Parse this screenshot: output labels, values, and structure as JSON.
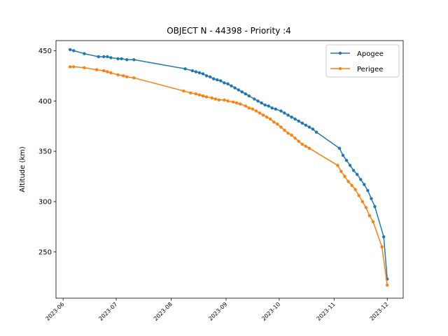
{
  "chart_data": {
    "type": "line",
    "title": "OBJECT N - 44398 - Priority :4",
    "xlabel": "",
    "ylabel": "Altitude (km)",
    "x_ticks": [
      "2023-06",
      "2023-07",
      "2023-08",
      "2023-09",
      "2023-10",
      "2023-11",
      "2023-12"
    ],
    "x_tick_dates": [
      "2023-06-01",
      "2023-07-01",
      "2023-08-01",
      "2023-09-01",
      "2023-10-01",
      "2023-11-01",
      "2023-12-01"
    ],
    "y_ticks": [
      250,
      300,
      350,
      400,
      450
    ],
    "xlim": [
      "2023-05-28",
      "2023-12-10"
    ],
    "ylim": [
      204,
      460
    ],
    "grid": false,
    "legend_position": "upper right",
    "series": [
      {
        "name": "Apogee",
        "color": "#1f77b4",
        "points": [
          [
            "2023-06-05",
            451
          ],
          [
            "2023-06-07",
            450
          ],
          [
            "2023-06-13",
            447
          ],
          [
            "2023-06-21",
            444
          ],
          [
            "2023-06-24",
            444
          ],
          [
            "2023-06-26",
            444
          ],
          [
            "2023-06-28",
            443
          ],
          [
            "2023-07-02",
            442
          ],
          [
            "2023-07-04",
            442
          ],
          [
            "2023-07-07",
            441
          ],
          [
            "2023-07-11",
            441
          ],
          [
            "2023-08-09",
            432
          ],
          [
            "2023-08-13",
            430
          ],
          [
            "2023-08-15",
            429
          ],
          [
            "2023-08-17",
            428
          ],
          [
            "2023-08-19",
            427
          ],
          [
            "2023-08-21",
            425
          ],
          [
            "2023-08-23",
            424
          ],
          [
            "2023-08-25",
            422
          ],
          [
            "2023-08-27",
            421
          ],
          [
            "2023-08-29",
            420
          ],
          [
            "2023-08-31",
            418
          ],
          [
            "2023-09-02",
            417
          ],
          [
            "2023-09-04",
            415
          ],
          [
            "2023-09-06",
            413
          ],
          [
            "2023-09-08",
            411
          ],
          [
            "2023-09-10",
            409
          ],
          [
            "2023-09-12",
            407
          ],
          [
            "2023-09-14",
            405
          ],
          [
            "2023-09-17",
            402
          ],
          [
            "2023-09-19",
            400
          ],
          [
            "2023-09-21",
            398
          ],
          [
            "2023-09-23",
            396
          ],
          [
            "2023-09-25",
            395
          ],
          [
            "2023-09-27",
            393
          ],
          [
            "2023-09-29",
            392
          ],
          [
            "2023-10-02",
            390
          ],
          [
            "2023-10-04",
            388
          ],
          [
            "2023-10-06",
            386
          ],
          [
            "2023-10-08",
            384
          ],
          [
            "2023-10-10",
            382
          ],
          [
            "2023-10-12",
            380
          ],
          [
            "2023-10-14",
            378
          ],
          [
            "2023-10-16",
            376
          ],
          [
            "2023-10-18",
            374
          ],
          [
            "2023-10-20",
            372
          ],
          [
            "2023-10-22",
            369
          ],
          [
            "2023-11-04",
            353
          ],
          [
            "2023-11-06",
            346
          ],
          [
            "2023-11-08",
            341
          ],
          [
            "2023-11-10",
            336
          ],
          [
            "2023-11-12",
            331
          ],
          [
            "2023-11-14",
            327
          ],
          [
            "2023-11-16",
            322
          ],
          [
            "2023-11-18",
            317
          ],
          [
            "2023-11-20",
            311
          ],
          [
            "2023-11-22",
            303
          ],
          [
            "2023-11-24",
            295
          ],
          [
            "2023-11-29",
            265
          ],
          [
            "2023-12-01",
            223
          ]
        ]
      },
      {
        "name": "Perigee",
        "color": "#ff7f0e",
        "points": [
          [
            "2023-06-05",
            434
          ],
          [
            "2023-06-07",
            434
          ],
          [
            "2023-06-13",
            433
          ],
          [
            "2023-06-20",
            431
          ],
          [
            "2023-06-24",
            430
          ],
          [
            "2023-06-26",
            429
          ],
          [
            "2023-06-28",
            428
          ],
          [
            "2023-07-02",
            426
          ],
          [
            "2023-07-05",
            425
          ],
          [
            "2023-07-07",
            424
          ],
          [
            "2023-07-11",
            423
          ],
          [
            "2023-08-08",
            410
          ],
          [
            "2023-08-12",
            408
          ],
          [
            "2023-08-15",
            407
          ],
          [
            "2023-08-17",
            406
          ],
          [
            "2023-08-19",
            405
          ],
          [
            "2023-08-21",
            404
          ],
          [
            "2023-08-24",
            403
          ],
          [
            "2023-08-26",
            402
          ],
          [
            "2023-08-28",
            401
          ],
          [
            "2023-08-31",
            401
          ],
          [
            "2023-09-02",
            400
          ],
          [
            "2023-09-05",
            399
          ],
          [
            "2023-09-07",
            398
          ],
          [
            "2023-09-09",
            397
          ],
          [
            "2023-09-12",
            395
          ],
          [
            "2023-09-14",
            393
          ],
          [
            "2023-09-16",
            392
          ],
          [
            "2023-09-18",
            390
          ],
          [
            "2023-09-20",
            388
          ],
          [
            "2023-09-22",
            386
          ],
          [
            "2023-09-24",
            384
          ],
          [
            "2023-09-26",
            382
          ],
          [
            "2023-09-28",
            379
          ],
          [
            "2023-09-30",
            377
          ],
          [
            "2023-10-02",
            374
          ],
          [
            "2023-10-04",
            371
          ],
          [
            "2023-10-06",
            368
          ],
          [
            "2023-10-08",
            366
          ],
          [
            "2023-10-10",
            363
          ],
          [
            "2023-10-12",
            360
          ],
          [
            "2023-10-14",
            357
          ],
          [
            "2023-10-16",
            355
          ],
          [
            "2023-10-18",
            353
          ],
          [
            "2023-11-03",
            336
          ],
          [
            "2023-11-05",
            330
          ],
          [
            "2023-11-07",
            325
          ],
          [
            "2023-11-09",
            320
          ],
          [
            "2023-11-11",
            316
          ],
          [
            "2023-11-13",
            312
          ],
          [
            "2023-11-15",
            306
          ],
          [
            "2023-11-17",
            300
          ],
          [
            "2023-11-19",
            294
          ],
          [
            "2023-11-21",
            286
          ],
          [
            "2023-11-23",
            280
          ],
          [
            "2023-11-28",
            255
          ],
          [
            "2023-12-01",
            217
          ]
        ]
      }
    ]
  }
}
